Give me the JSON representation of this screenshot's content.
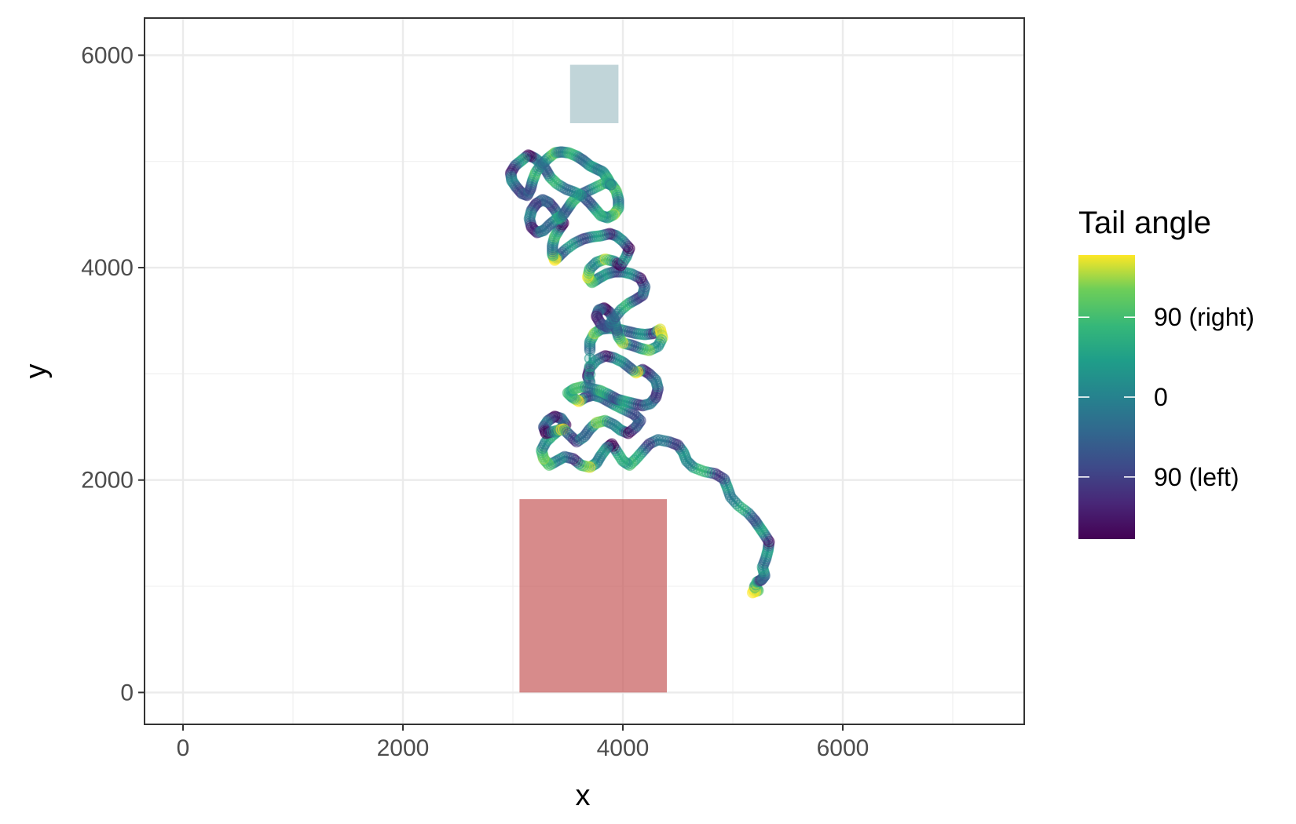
{
  "chart_data": {
    "type": "scatter",
    "title": "",
    "xlabel": "x",
    "ylabel": "y",
    "xlim": [
      -350,
      7650
    ],
    "ylim": [
      -300,
      6350
    ],
    "x_ticks": [
      0,
      2000,
      4000,
      6000
    ],
    "x_tick_labels": [
      "0",
      "2000",
      "4000",
      "6000"
    ],
    "y_ticks": [
      0,
      2000,
      4000,
      6000
    ],
    "y_tick_labels": [
      "0",
      "2000",
      "4000",
      "6000"
    ],
    "grid": true,
    "legend": {
      "title": "Tail angle",
      "placement": "right",
      "type": "colorbar",
      "palette": "viridis",
      "range": [
        -160,
        160
      ],
      "breaks": [
        -90,
        0,
        90
      ],
      "break_labels": [
        "90 (left)",
        "0",
        "90 (right)"
      ]
    },
    "zones": [
      {
        "name": "target-zone",
        "x": [
          3520,
          3960
        ],
        "y": [
          5360,
          5910
        ],
        "color": "#a6c3c9"
      },
      {
        "name": "start-zone",
        "x": [
          3060,
          4400
        ],
        "y": [
          0,
          1820
        ],
        "color": "#c65a5a"
      }
    ],
    "track_points": [
      [
        5200,
        1000
      ],
      [
        5230,
        960
      ],
      [
        5180,
        940
      ],
      [
        5220,
        1040
      ],
      [
        5260,
        1060
      ],
      [
        5290,
        1100
      ],
      [
        5270,
        1180
      ],
      [
        5300,
        1260
      ],
      [
        5320,
        1340
      ],
      [
        5330,
        1420
      ],
      [
        5280,
        1500
      ],
      [
        5240,
        1560
      ],
      [
        5200,
        1620
      ],
      [
        5140,
        1690
      ],
      [
        5050,
        1760
      ],
      [
        4980,
        1840
      ],
      [
        4950,
        1930
      ],
      [
        4920,
        2010
      ],
      [
        4840,
        2060
      ],
      [
        4740,
        2080
      ],
      [
        4640,
        2120
      ],
      [
        4580,
        2180
      ],
      [
        4550,
        2260
      ],
      [
        4500,
        2330
      ],
      [
        4420,
        2360
      ],
      [
        4320,
        2380
      ],
      [
        4240,
        2340
      ],
      [
        4180,
        2270
      ],
      [
        4120,
        2200
      ],
      [
        4060,
        2140
      ],
      [
        4000,
        2180
      ],
      [
        3950,
        2260
      ],
      [
        3900,
        2340
      ],
      [
        3850,
        2300
      ],
      [
        3800,
        2230
      ],
      [
        3760,
        2160
      ],
      [
        3700,
        2120
      ],
      [
        3620,
        2140
      ],
      [
        3550,
        2200
      ],
      [
        3470,
        2220
      ],
      [
        3400,
        2180
      ],
      [
        3330,
        2140
      ],
      [
        3280,
        2200
      ],
      [
        3260,
        2280
      ],
      [
        3300,
        2360
      ],
      [
        3360,
        2420
      ],
      [
        3420,
        2470
      ],
      [
        3480,
        2520
      ],
      [
        3440,
        2580
      ],
      [
        3380,
        2600
      ],
      [
        3320,
        2560
      ],
      [
        3280,
        2500
      ],
      [
        3300,
        2440
      ],
      [
        3380,
        2460
      ],
      [
        3460,
        2480
      ],
      [
        3520,
        2420
      ],
      [
        3580,
        2360
      ],
      [
        3650,
        2410
      ],
      [
        3700,
        2480
      ],
      [
        3760,
        2540
      ],
      [
        3840,
        2560
      ],
      [
        3920,
        2520
      ],
      [
        3980,
        2470
      ],
      [
        4050,
        2440
      ],
      [
        4120,
        2500
      ],
      [
        4160,
        2560
      ],
      [
        4100,
        2620
      ],
      [
        4020,
        2660
      ],
      [
        3940,
        2700
      ],
      [
        3870,
        2740
      ],
      [
        3800,
        2780
      ],
      [
        3730,
        2800
      ],
      [
        3660,
        2780
      ],
      [
        3600,
        2740
      ],
      [
        3540,
        2780
      ],
      [
        3500,
        2820
      ],
      [
        3560,
        2860
      ],
      [
        3640,
        2880
      ],
      [
        3720,
        2860
      ],
      [
        3800,
        2840
      ],
      [
        3880,
        2800
      ],
      [
        3950,
        2760
      ],
      [
        4020,
        2740
      ],
      [
        4100,
        2720
      ],
      [
        4180,
        2700
      ],
      [
        4250,
        2720
      ],
      [
        4300,
        2780
      ],
      [
        4320,
        2860
      ],
      [
        4300,
        2940
      ],
      [
        4240,
        3000
      ],
      [
        4180,
        3040
      ],
      [
        4120,
        3010
      ],
      [
        4060,
        3060
      ],
      [
        4000,
        3110
      ],
      [
        3920,
        3150
      ],
      [
        3840,
        3170
      ],
      [
        3760,
        3130
      ],
      [
        3700,
        3060
      ],
      [
        3680,
        2980
      ],
      [
        3700,
        2920
      ],
      [
        3700,
        3220
      ],
      [
        3700,
        3300
      ],
      [
        3740,
        3380
      ],
      [
        3800,
        3420
      ],
      [
        3880,
        3430
      ],
      [
        3960,
        3420
      ],
      [
        4040,
        3400
      ],
      [
        4120,
        3380
      ],
      [
        4200,
        3370
      ],
      [
        4280,
        3380
      ],
      [
        4340,
        3420
      ],
      [
        4360,
        3340
      ],
      [
        4320,
        3260
      ],
      [
        4240,
        3220
      ],
      [
        4160,
        3240
      ],
      [
        4080,
        3270
      ],
      [
        4000,
        3290
      ],
      [
        3960,
        3350
      ],
      [
        3940,
        3430
      ],
      [
        3920,
        3510
      ],
      [
        3880,
        3580
      ],
      [
        3830,
        3620
      ],
      [
        3780,
        3600
      ],
      [
        3760,
        3540
      ],
      [
        3800,
        3470
      ],
      [
        3860,
        3440
      ],
      [
        3920,
        3520
      ],
      [
        3980,
        3600
      ],
      [
        4050,
        3660
      ],
      [
        4120,
        3700
      ],
      [
        4180,
        3740
      ],
      [
        4200,
        3820
      ],
      [
        4160,
        3900
      ],
      [
        4080,
        3940
      ],
      [
        4000,
        3960
      ],
      [
        3920,
        3960
      ],
      [
        3850,
        3940
      ],
      [
        3780,
        3900
      ],
      [
        3720,
        3860
      ],
      [
        3680,
        3910
      ],
      [
        3700,
        3990
      ],
      [
        3760,
        4050
      ],
      [
        3840,
        4080
      ],
      [
        3920,
        4060
      ],
      [
        3980,
        4020
      ],
      [
        4030,
        4100
      ],
      [
        4060,
        4180
      ],
      [
        4000,
        4250
      ],
      [
        3940,
        4300
      ],
      [
        3880,
        4320
      ],
      [
        3800,
        4300
      ],
      [
        3720,
        4290
      ],
      [
        3640,
        4270
      ],
      [
        3560,
        4230
      ],
      [
        3480,
        4170
      ],
      [
        3420,
        4110
      ],
      [
        3380,
        4070
      ],
      [
        3360,
        4130
      ],
      [
        3360,
        4210
      ],
      [
        3380,
        4290
      ],
      [
        3420,
        4360
      ],
      [
        3460,
        4420
      ],
      [
        3420,
        4480
      ],
      [
        3380,
        4550
      ],
      [
        3330,
        4610
      ],
      [
        3270,
        4640
      ],
      [
        3210,
        4600
      ],
      [
        3170,
        4540
      ],
      [
        3150,
        4460
      ],
      [
        3170,
        4380
      ],
      [
        3220,
        4330
      ],
      [
        3280,
        4350
      ],
      [
        3340,
        4410
      ],
      [
        3400,
        4460
      ],
      [
        3460,
        4500
      ],
      [
        3500,
        4560
      ],
      [
        3540,
        4620
      ],
      [
        3600,
        4680
      ],
      [
        3680,
        4720
      ],
      [
        3760,
        4760
      ],
      [
        3840,
        4800
      ],
      [
        3900,
        4780
      ],
      [
        3940,
        4720
      ],
      [
        3960,
        4640
      ],
      [
        3960,
        4560
      ],
      [
        3920,
        4500
      ],
      [
        3860,
        4470
      ],
      [
        3800,
        4490
      ],
      [
        3750,
        4550
      ],
      [
        3700,
        4610
      ],
      [
        3640,
        4670
      ],
      [
        3560,
        4710
      ],
      [
        3480,
        4740
      ],
      [
        3400,
        4790
      ],
      [
        3340,
        4850
      ],
      [
        3300,
        4920
      ],
      [
        3260,
        4980
      ],
      [
        3200,
        5030
      ],
      [
        3140,
        5060
      ],
      [
        3080,
        5010
      ],
      [
        3020,
        4960
      ],
      [
        2980,
        4890
      ],
      [
        2990,
        4820
      ],
      [
        3030,
        4760
      ],
      [
        3080,
        4700
      ],
      [
        3130,
        4680
      ],
      [
        3160,
        4740
      ],
      [
        3180,
        4820
      ],
      [
        3210,
        4900
      ],
      [
        3260,
        4970
      ],
      [
        3320,
        5030
      ],
      [
        3380,
        5080
      ],
      [
        3440,
        5090
      ],
      [
        3510,
        5080
      ],
      [
        3580,
        5050
      ],
      [
        3640,
        5010
      ],
      [
        3700,
        4960
      ],
      [
        3760,
        4930
      ],
      [
        3820,
        4900
      ],
      [
        3860,
        4840
      ],
      [
        3890,
        4780
      ]
    ]
  }
}
